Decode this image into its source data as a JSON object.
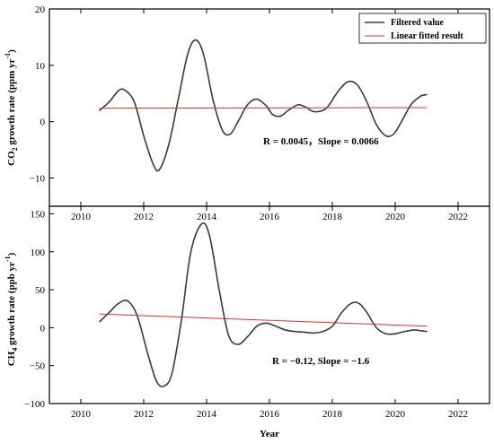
{
  "chart_data": [
    {
      "type": "line",
      "ylabel_main": "CO",
      "ylabel_sub": "2",
      "ylabel_rest": " growth rate (ppm yr",
      "ylabel_sup": "-1",
      "ylabel_end": ")",
      "xlim": [
        2009,
        2023
      ],
      "ylim": [
        -15,
        20
      ],
      "yticks": [
        -10,
        0,
        10,
        20
      ],
      "ytick_labels": [
        "−10",
        "0",
        "10",
        "20"
      ],
      "xticks": [
        2010,
        2012,
        2014,
        2016,
        2018,
        2020,
        2022
      ],
      "legend": {
        "position": "top-right",
        "entries": [
          "Filtered value",
          "Linear fitted result"
        ]
      },
      "annotation": "R = 0.0045，Slope = 0.0066",
      "series": [
        {
          "name": "Filtered value",
          "color": "#3a3a3a",
          "x": [
            2010.6,
            2010.9,
            2011.2,
            2011.4,
            2011.7,
            2012.0,
            2012.3,
            2012.5,
            2012.8,
            2013.1,
            2013.4,
            2013.65,
            2013.9,
            2014.2,
            2014.5,
            2014.75,
            2015.0,
            2015.3,
            2015.6,
            2015.9,
            2016.1,
            2016.35,
            2016.6,
            2016.9,
            2017.15,
            2017.4,
            2017.7,
            2017.9,
            2018.2,
            2018.5,
            2018.8,
            2019.1,
            2019.4,
            2019.7,
            2019.95,
            2020.2,
            2020.5,
            2020.8,
            2021.0
          ],
          "y": [
            2.0,
            3.5,
            5.5,
            5.6,
            3.5,
            -2.5,
            -7.5,
            -8.5,
            -4.0,
            4.0,
            12.0,
            14.5,
            12.0,
            4.0,
            -1.5,
            -2.2,
            0.0,
            3.0,
            4.0,
            2.8,
            1.3,
            1.0,
            2.0,
            3.0,
            2.6,
            1.8,
            2.0,
            3.0,
            5.5,
            7.1,
            6.5,
            3.5,
            -0.5,
            -2.5,
            -2.2,
            0.0,
            3.0,
            4.5,
            4.8
          ]
        },
        {
          "name": "Linear fitted result",
          "color": "#e03030",
          "x": [
            2010.6,
            2021.0
          ],
          "y": [
            2.4,
            2.5
          ]
        }
      ]
    },
    {
      "type": "line",
      "ylabel_main": "CH",
      "ylabel_sub": "4",
      "ylabel_rest": " growth rate (ppb yr",
      "ylabel_sup": "-1",
      "ylabel_end": ")",
      "xlabel": "Year",
      "xlim": [
        2009,
        2023
      ],
      "ylim": [
        -100,
        160
      ],
      "yticks": [
        -100,
        -50,
        0,
        50,
        100,
        150
      ],
      "ytick_labels": [
        "−100",
        "−50",
        "0",
        "50",
        "100",
        "150"
      ],
      "xticks": [
        2010,
        2012,
        2014,
        2016,
        2018,
        2020,
        2022
      ],
      "xtick_labels": [
        "2010",
        "2012",
        "2014",
        "2016",
        "2018",
        "2020",
        "2022"
      ],
      "annotation": "R = −0.12, Slope = −1.6",
      "series": [
        {
          "name": "Filtered value",
          "color": "#3a3a3a",
          "x": [
            2010.6,
            2010.9,
            2011.2,
            2011.5,
            2011.8,
            2012.1,
            2012.4,
            2012.65,
            2012.9,
            2013.2,
            2013.5,
            2013.85,
            2014.1,
            2014.4,
            2014.7,
            2015.0,
            2015.3,
            2015.6,
            2015.9,
            2016.2,
            2016.5,
            2016.8,
            2017.1,
            2017.4,
            2017.7,
            2018.0,
            2018.3,
            2018.6,
            2018.85,
            2019.1,
            2019.4,
            2019.7,
            2020.0,
            2020.3,
            2020.6,
            2020.8,
            2021.0
          ],
          "y": [
            8,
            20,
            32,
            35,
            15,
            -30,
            -70,
            -77,
            -60,
            10,
            100,
            137,
            120,
            50,
            -10,
            -22,
            -12,
            2,
            6,
            2,
            -3,
            -5,
            -6,
            -7,
            -5,
            2,
            20,
            32,
            32,
            20,
            0,
            -8,
            -8,
            -5,
            -3,
            -4,
            -5
          ]
        },
        {
          "name": "Linear fitted result",
          "color": "#e03030",
          "x": [
            2010.6,
            2021.0
          ],
          "y": [
            18,
            2
          ]
        }
      ]
    }
  ]
}
